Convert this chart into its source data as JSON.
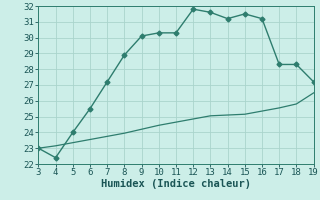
{
  "xlabel": "Humidex (Indice chaleur)",
  "ylabel": "",
  "xlim": [
    3,
    19
  ],
  "ylim": [
    22,
    32
  ],
  "xticks": [
    3,
    4,
    5,
    6,
    7,
    8,
    9,
    10,
    11,
    12,
    13,
    14,
    15,
    16,
    17,
    18,
    19
  ],
  "yticks": [
    22,
    23,
    24,
    25,
    26,
    27,
    28,
    29,
    30,
    31,
    32
  ],
  "line1_x": [
    3,
    4,
    5,
    6,
    7,
    8,
    9,
    10,
    11,
    12,
    13,
    14,
    15,
    16,
    17,
    18,
    19
  ],
  "line1_y": [
    23.0,
    22.4,
    24.0,
    25.5,
    27.2,
    28.9,
    30.1,
    30.3,
    30.3,
    31.8,
    31.6,
    31.2,
    31.5,
    31.2,
    28.3,
    28.3,
    27.2
  ],
  "line2_x": [
    3,
    4,
    5,
    6,
    7,
    8,
    9,
    10,
    11,
    12,
    13,
    14,
    15,
    16,
    17,
    18,
    19
  ],
  "line2_y": [
    23.0,
    23.15,
    23.35,
    23.55,
    23.75,
    23.95,
    24.2,
    24.45,
    24.65,
    24.85,
    25.05,
    25.1,
    25.15,
    25.35,
    25.55,
    25.8,
    26.5
  ],
  "line_color": "#2e7d6e",
  "bg_color": "#cceee8",
  "grid_color": "#aad4cc",
  "marker": "D",
  "marker_size": 2.5,
  "font_color": "#1a5555",
  "tick_fontsize": 6.5,
  "xlabel_fontsize": 7.5
}
